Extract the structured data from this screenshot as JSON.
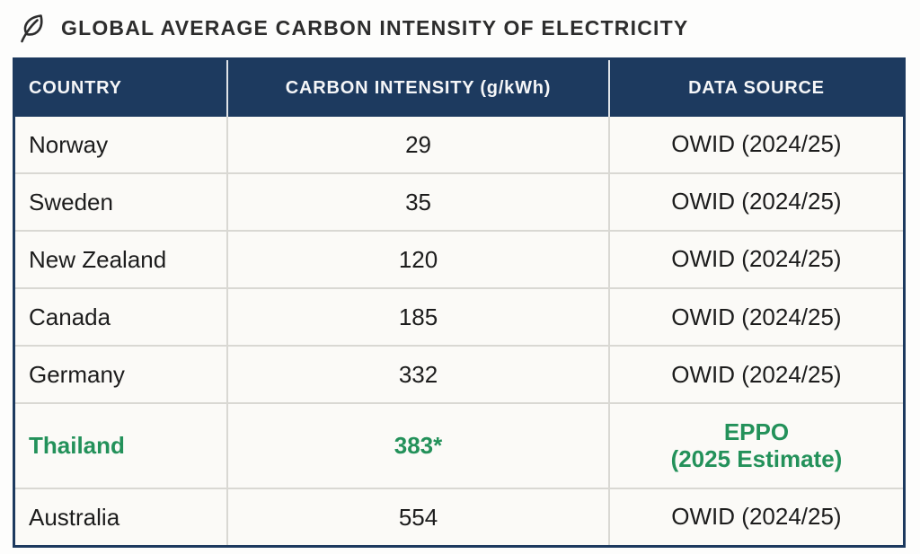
{
  "page": {
    "title": "GLOBAL AVERAGE CARBON INTENSITY OF ELECTRICITY",
    "title_icon": "leaf-icon"
  },
  "colors": {
    "header_bg": "#1d3a5f",
    "table_border": "#1d3a5f",
    "row_bg": "#fbfaf7",
    "row_divider": "#d9d8d3",
    "body_text": "#1c1c1c",
    "highlight_green": "#23915a",
    "title_text": "#2d2d2d",
    "header_text": "#f5f6f8"
  },
  "table": {
    "columns": [
      "COUNTRY",
      "CARBON INTENSITY (g/kWh)",
      "DATA SOURCE"
    ],
    "rows": [
      {
        "country": "Norway",
        "intensity": "29",
        "source": "OWID (2024/25)",
        "highlight": false
      },
      {
        "country": "Sweden",
        "intensity": "35",
        "source": "OWID (2024/25)",
        "highlight": false
      },
      {
        "country": "New Zealand",
        "intensity": "120",
        "source": "OWID (2024/25)",
        "highlight": false
      },
      {
        "country": "Canada",
        "intensity": "185",
        "source": "OWID (2024/25)",
        "highlight": false
      },
      {
        "country": "Germany",
        "intensity": "332",
        "source": "OWID (2024/25)",
        "highlight": false
      },
      {
        "country": "Thailand",
        "intensity": "383*",
        "source": "EPPO\n(2025 Estimate)",
        "highlight": true
      },
      {
        "country": "Australia",
        "intensity": "554",
        "source": "OWID (2024/25)",
        "highlight": false
      }
    ]
  },
  "chart_data": {
    "type": "table",
    "title": "GLOBAL AVERAGE CARBON INTENSITY OF ELECTRICITY",
    "columns": [
      "COUNTRY",
      "CARBON INTENSITY (g/kWh)",
      "DATA SOURCE"
    ],
    "rows": [
      [
        "Norway",
        29,
        "OWID (2024/25)"
      ],
      [
        "Sweden",
        35,
        "OWID (2024/25)"
      ],
      [
        "New Zealand",
        120,
        "OWID (2024/25)"
      ],
      [
        "Canada",
        185,
        "OWID (2024/25)"
      ],
      [
        "Germany",
        332,
        "OWID (2024/25)"
      ],
      [
        "Thailand",
        383,
        "EPPO (2025 Estimate)"
      ],
      [
        "Australia",
        554,
        "OWID (2024/25)"
      ]
    ],
    "units": "g/kWh",
    "highlighted_row": "Thailand",
    "footnote_marker": "*"
  }
}
